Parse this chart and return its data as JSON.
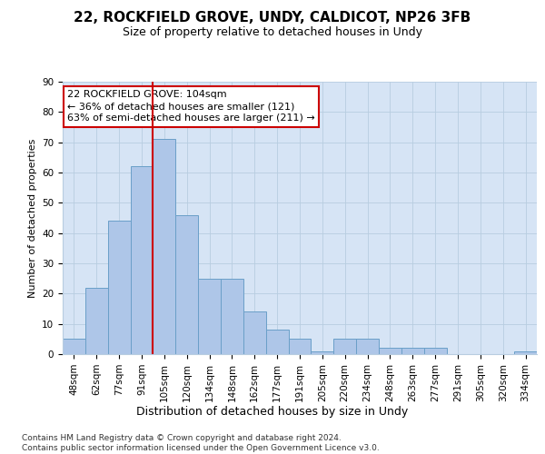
{
  "title1": "22, ROCKFIELD GROVE, UNDY, CALDICOT, NP26 3FB",
  "title2": "Size of property relative to detached houses in Undy",
  "xlabel": "Distribution of detached houses by size in Undy",
  "ylabel": "Number of detached properties",
  "categories": [
    "48sqm",
    "62sqm",
    "77sqm",
    "91sqm",
    "105sqm",
    "120sqm",
    "134sqm",
    "148sqm",
    "162sqm",
    "177sqm",
    "191sqm",
    "205sqm",
    "220sqm",
    "234sqm",
    "248sqm",
    "263sqm",
    "277sqm",
    "291sqm",
    "305sqm",
    "320sqm",
    "334sqm"
  ],
  "values": [
    5,
    22,
    44,
    62,
    71,
    46,
    25,
    25,
    14,
    8,
    5,
    1,
    5,
    5,
    2,
    2,
    2,
    0,
    0,
    0,
    1
  ],
  "bar_color": "#aec6e8",
  "bar_edge_color": "#6a9fc8",
  "vline_color": "#cc0000",
  "vline_x_index": 4,
  "annotation_text": "22 ROCKFIELD GROVE: 104sqm\n← 36% of detached houses are smaller (121)\n63% of semi-detached houses are larger (211) →",
  "annotation_box_color": "#ffffff",
  "annotation_box_edge": "#cc0000",
  "ylim": [
    0,
    90
  ],
  "yticks": [
    0,
    10,
    20,
    30,
    40,
    50,
    60,
    70,
    80,
    90
  ],
  "footer": "Contains HM Land Registry data © Crown copyright and database right 2024.\nContains public sector information licensed under the Open Government Licence v3.0.",
  "plot_bg_color": "#d6e4f5",
  "fig_bg_color": "#ffffff",
  "title1_fontsize": 11,
  "title2_fontsize": 9,
  "ylabel_fontsize": 8,
  "xlabel_fontsize": 9,
  "tick_fontsize": 7.5,
  "annotation_fontsize": 8,
  "footer_fontsize": 6.5
}
